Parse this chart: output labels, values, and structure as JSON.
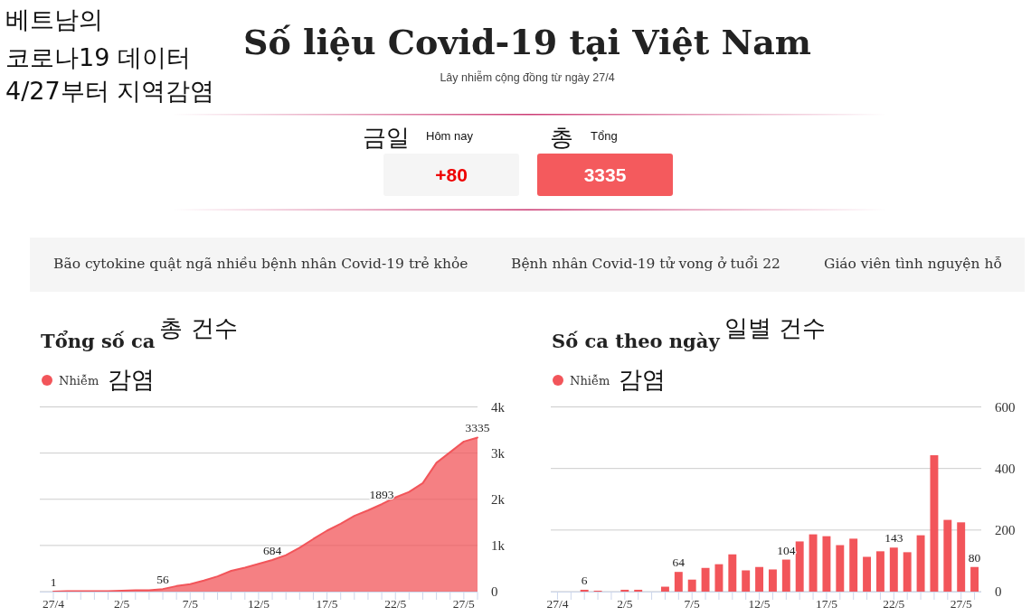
{
  "chart_data": [
    {
      "type": "other",
      "title": "Số liệu Covid-19 tại Việt Nam",
      "subtitle": "Lây nhiễm cộng đồng từ ngày 27/4",
      "annotations": [
        "베트남의",
        "코로나19 데이터",
        "4/27부터 지역감염",
        "금일",
        "Hôm nay",
        "+80",
        "총",
        "Tổng",
        "3335",
        "Bão cytokine quật ngã nhiều bệnh nhân Covid-19 trẻ khỏe",
        "Bệnh nhân Covid-19 tử vong ở tuổi 22",
        "Giáo viên tình nguyện hỗ"
      ]
    },
    {
      "type": "area",
      "title": "Tổng số ca",
      "annotations": [
        "총 건수",
        "감염"
      ],
      "categories": [
        "27/4",
        null,
        null,
        null,
        null,
        "2/5",
        null,
        null,
        null,
        null,
        "7/5",
        null,
        null,
        null,
        null,
        "12/5",
        null,
        null,
        null,
        null,
        "17/5",
        null,
        null,
        null,
        null,
        "22/5",
        null,
        null,
        null,
        null,
        "27/5",
        null
      ],
      "series": [
        {
          "name": "Nhiễm",
          "color": "#f2555a",
          "values": [
            1,
            10,
            10,
            10,
            10,
            20,
            30,
            30,
            56,
            120,
            160,
            240,
            330,
            450,
            520,
            600,
            684,
            790,
            950,
            1140,
            1320,
            1470,
            1640,
            1760,
            1893,
            2040,
            2160,
            2350,
            2790,
            3020,
            3250,
            3335
          ],
          "value_labels": [
            "1",
            null,
            null,
            null,
            null,
            null,
            null,
            null,
            "56",
            null,
            null,
            null,
            null,
            null,
            null,
            null,
            "684",
            null,
            null,
            null,
            null,
            null,
            null,
            null,
            "1893",
            null,
            null,
            null,
            null,
            null,
            null,
            "3335"
          ]
        }
      ],
      "ylim": [
        0,
        4000
      ],
      "yticks": [
        0,
        {
          "value": 1000,
          "label": "1k"
        },
        {
          "value": 2000,
          "label": "2k"
        },
        {
          "value": 3000,
          "label": "3k"
        },
        {
          "value": 4000,
          "label": "4k"
        }
      ],
      "grid": "y",
      "legend": "top left"
    },
    {
      "type": "bar",
      "title": "Số ca theo ngày",
      "annotations": [
        "일별 건수",
        "감염"
      ],
      "categories": [
        "27/4",
        null,
        null,
        null,
        null,
        "2/5",
        null,
        null,
        null,
        null,
        "7/5",
        null,
        null,
        null,
        null,
        "12/5",
        null,
        null,
        null,
        null,
        "17/5",
        null,
        null,
        null,
        null,
        "22/5",
        null,
        null,
        null,
        null,
        "27/5",
        null
      ],
      "series": [
        {
          "name": "Nhiễm",
          "color": "#f2555a",
          "values": [
            0,
            0,
            6,
            3,
            0,
            6,
            6,
            0,
            16,
            64,
            39,
            77,
            89,
            121,
            69,
            80,
            72,
            104,
            163,
            186,
            180,
            151,
            172,
            113,
            131,
            143,
            128,
            183,
            443,
            233,
            225,
            80
          ],
          "value_labels": [
            null,
            null,
            "6",
            null,
            null,
            null,
            null,
            null,
            null,
            "64",
            null,
            null,
            null,
            null,
            null,
            null,
            null,
            "104",
            null,
            null,
            null,
            null,
            null,
            null,
            null,
            "143",
            null,
            null,
            null,
            null,
            null,
            "80"
          ]
        }
      ],
      "ylim": [
        0,
        600
      ],
      "yticks": [
        0,
        200,
        400,
        600
      ],
      "grid": "y",
      "legend": "top left"
    }
  ]
}
